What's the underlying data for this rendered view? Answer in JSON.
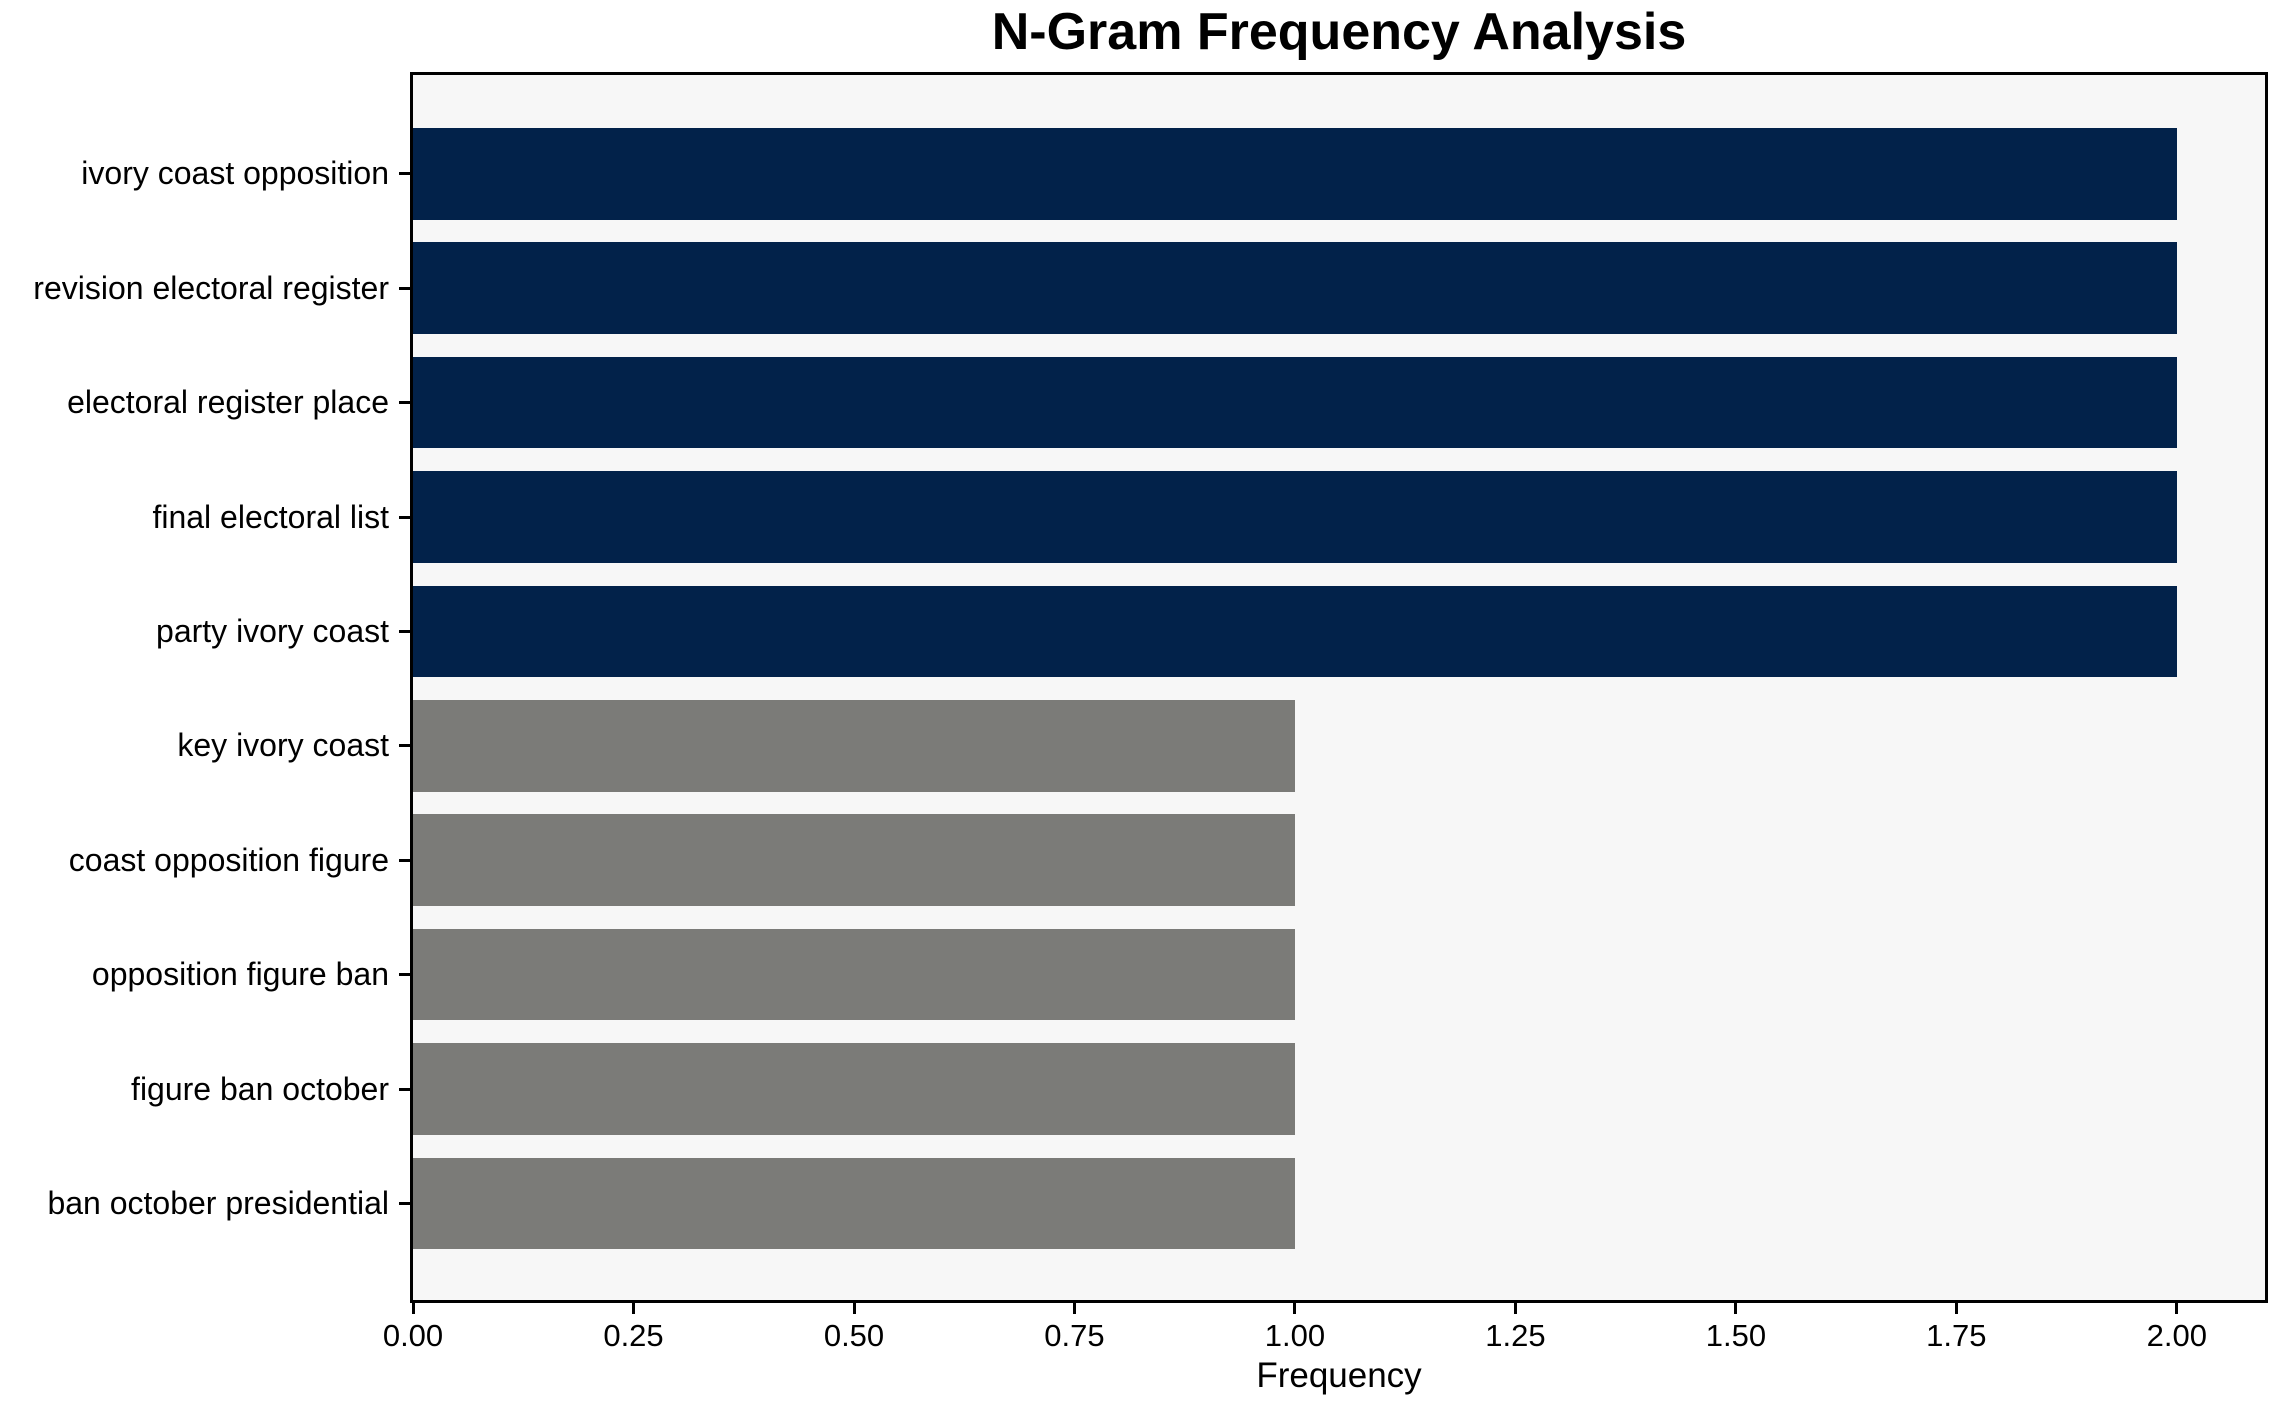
{
  "chart_data": {
    "type": "bar",
    "orientation": "horizontal",
    "title": "N-Gram Frequency Analysis",
    "xlabel": "Frequency",
    "ylabel": "",
    "categories": [
      "ivory coast opposition",
      "revision electoral register",
      "electoral register place",
      "final electoral list",
      "party ivory coast",
      "key ivory coast",
      "coast opposition figure",
      "opposition figure ban",
      "figure ban october",
      "ban october presidential"
    ],
    "values": [
      2,
      2,
      2,
      2,
      2,
      1,
      1,
      1,
      1,
      1
    ],
    "bar_colors": [
      "#02224a",
      "#02224a",
      "#02224a",
      "#02224a",
      "#02224a",
      "#7b7b78",
      "#7b7b78",
      "#7b7b78",
      "#7b7b78",
      "#7b7b78"
    ],
    "xlim": [
      0,
      2.1
    ],
    "xticks": [
      {
        "label": "0.00",
        "value": 0
      },
      {
        "label": "0.25",
        "value": 0.25
      },
      {
        "label": "0.50",
        "value": 0.5
      },
      {
        "label": "0.75",
        "value": 0.75
      },
      {
        "label": "1.00",
        "value": 1
      },
      {
        "label": "1.25",
        "value": 1.25
      },
      {
        "label": "1.50",
        "value": 1.5
      },
      {
        "label": "1.75",
        "value": 1.75
      },
      {
        "label": "2.00",
        "value": 2
      }
    ],
    "grid": false,
    "legend_position": "none",
    "bar_height_ratio": 0.8
  },
  "colors": {
    "navy": "#02224a",
    "gray": "#7b7b78",
    "plot_background": "#f7f7f7",
    "figure_background": "#ffffff",
    "axis": "#000000"
  }
}
